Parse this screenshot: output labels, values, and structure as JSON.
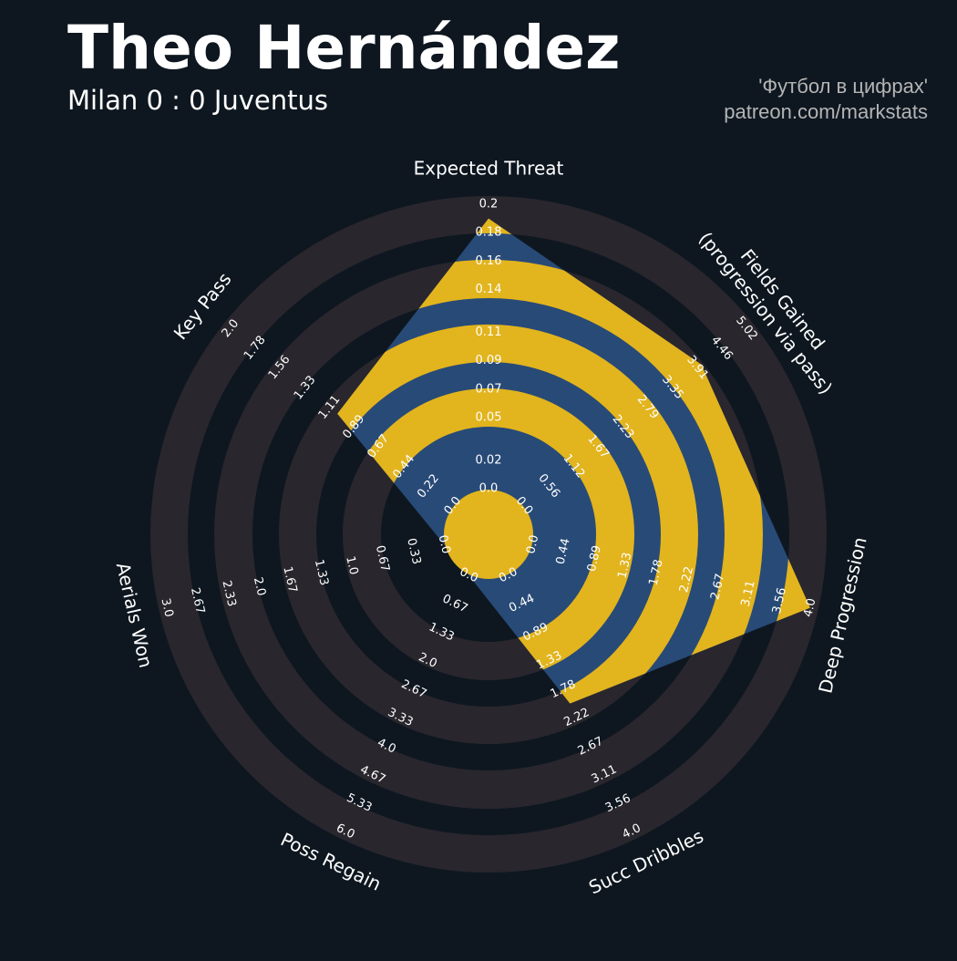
{
  "chart_data": {
    "type": "radar",
    "title": "Theo Hernández",
    "subtitle": "Milan 0 : 0 Juventus",
    "credits": [
      "'Футбол в цифрах'",
      "patreon.com/markstats"
    ],
    "color": "#284a77",
    "highlight_color": "#e2b41e",
    "ring_color": "#29262d",
    "params": [
      {
        "name": "Expected Threat",
        "range": [
          0,
          0.2
        ],
        "ticks": [
          {
            "value": 0,
            "label": "0.0"
          },
          0.02,
          0.05,
          0.07,
          0.09,
          0.11,
          0.14,
          0.16,
          0.18,
          0.2
        ]
      },
      {
        "name": "Fields Gained\n(progression via pass)",
        "range": [
          0,
          5.02
        ],
        "ticks": [
          {
            "value": 0,
            "label": "0.0"
          },
          0.56,
          1.12,
          1.67,
          2.23,
          2.79,
          3.35,
          3.91,
          4.46,
          5.02
        ]
      },
      {
        "name": "Deep Progression",
        "range": [
          0,
          4
        ],
        "ticks": [
          {
            "value": 0,
            "label": "0.0"
          },
          0.44,
          0.89,
          1.33,
          1.78,
          2.22,
          2.67,
          3.11,
          3.56,
          {
            "value": 4,
            "label": "4.0"
          }
        ]
      },
      {
        "name": "Succ Dribbles",
        "range": [
          0,
          4
        ],
        "ticks": [
          {
            "value": 0,
            "label": "0.0"
          },
          0.44,
          0.89,
          1.33,
          1.78,
          2.22,
          2.67,
          3.11,
          3.56,
          {
            "value": 4,
            "label": "4.0"
          }
        ]
      },
      {
        "name": "Poss Regain",
        "range": [
          0,
          6
        ],
        "ticks": [
          {
            "value": 0,
            "label": "0.0"
          },
          0.67,
          1.33,
          {
            "value": 2,
            "label": "2.0"
          },
          2.67,
          3.33,
          {
            "value": 4,
            "label": "4.0"
          },
          4.67,
          5.33,
          {
            "value": 6,
            "label": "6.0"
          }
        ]
      },
      {
        "name": "Aerials Won",
        "range": [
          0,
          3
        ],
        "ticks": [
          {
            "value": 0,
            "label": "0.0"
          },
          0.33,
          0.67,
          {
            "value": 1,
            "label": "1.0"
          },
          1.33,
          1.67,
          {
            "value": 2,
            "label": "2.0"
          },
          2.33,
          2.67,
          {
            "value": 3,
            "label": "3.0"
          }
        ]
      },
      {
        "name": "Key Pass",
        "range": [
          0,
          2
        ],
        "ticks": [
          {
            "value": 0,
            "label": "0.0"
          },
          0.22,
          0.44,
          0.67,
          0.89,
          1.11,
          1.33,
          1.56,
          1.78,
          {
            "value": 2,
            "label": "2.0"
          }
        ]
      }
    ],
    "values": [
      0.19,
      4.0,
      4.0,
      2.0,
      0,
      0,
      1.04
    ]
  }
}
